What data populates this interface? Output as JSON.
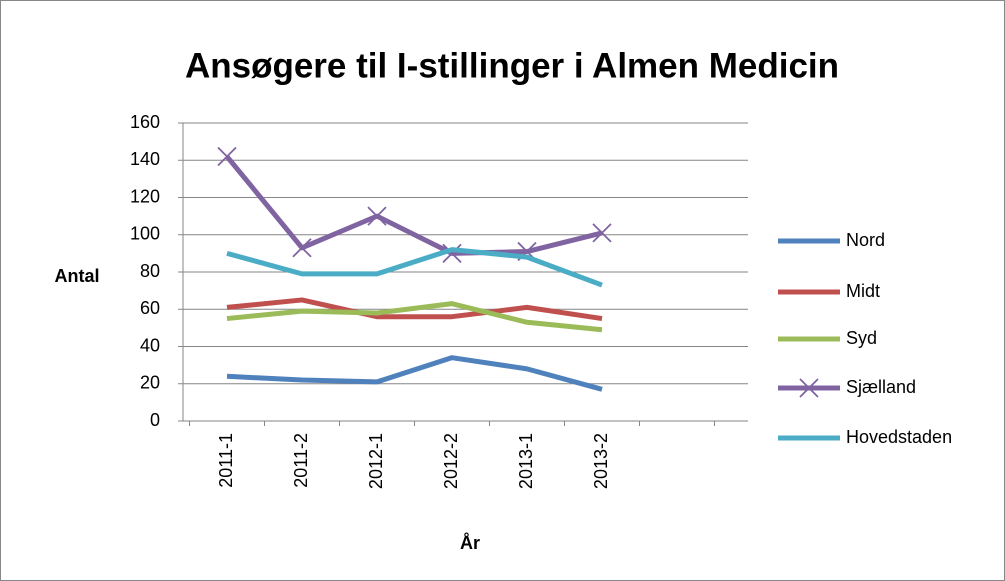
{
  "chart_data": {
    "type": "line",
    "title": "Ansøgere til I-stillinger i Almen Medicin",
    "x_label": "År",
    "y_label": "Antal",
    "categories": [
      "2011-1",
      "2011-2",
      "2012-1",
      "2012-2",
      "2013-1",
      "2013-2"
    ],
    "series": [
      {
        "name": "Nord",
        "color": "#4f81bd",
        "values": [
          24,
          22,
          21,
          34,
          28,
          17
        ]
      },
      {
        "name": "Midt",
        "color": "#c0504d",
        "values": [
          61,
          65,
          56,
          56,
          61,
          55
        ]
      },
      {
        "name": "Syd",
        "color": "#9bbb59",
        "values": [
          55,
          59,
          58,
          63,
          53,
          49
        ]
      },
      {
        "name": "Sjælland",
        "color": "#8064a2",
        "values": [
          142,
          93,
          110,
          90,
          91,
          101
        ],
        "marker": "x"
      },
      {
        "name": "Hovedstaden",
        "color": "#4bacc6",
        "values": [
          90,
          79,
          79,
          92,
          88,
          73
        ]
      }
    ],
    "ylim": [
      0,
      160
    ],
    "yticks": [
      0,
      20,
      40,
      60,
      80,
      100,
      120,
      140,
      160
    ],
    "grid": true,
    "legend": "right"
  }
}
